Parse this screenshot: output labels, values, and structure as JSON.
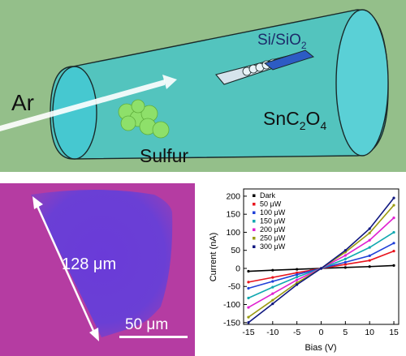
{
  "diagram": {
    "gas_label": "Ar",
    "substrate_label": "Si/SiO",
    "substrate_sub": "2",
    "precursor_main": "SnC",
    "precursor_sub1": "2",
    "precursor_mid": "O",
    "precursor_sub2": "4",
    "sulfur_label": "Sulfur"
  },
  "micrograph": {
    "size_label": "128 μm",
    "scalebar_label": "50 μm"
  },
  "chart_data": {
    "type": "line",
    "title": "",
    "xlabel": "Bias (V)",
    "ylabel": "Current (nA)",
    "xlim": [
      -16,
      16
    ],
    "ylim": [
      -155,
      220
    ],
    "xticks": [
      -15,
      -10,
      -5,
      0,
      5,
      10,
      15
    ],
    "yticks": [
      -150,
      -100,
      -50,
      0,
      50,
      100,
      150,
      200
    ],
    "legend_position": "top-left",
    "series": [
      {
        "name": "Dark",
        "color": "#000000",
        "x": [
          -15,
          -10,
          -5,
          0,
          5,
          10,
          15
        ],
        "y": [
          -8,
          -5,
          -2.5,
          0,
          2.5,
          5,
          8
        ]
      },
      {
        "name": "50 μW",
        "color": "#e8141e",
        "x": [
          -15,
          -10,
          -5,
          0,
          5,
          10,
          15
        ],
        "y": [
          -38,
          -25,
          -12,
          0,
          11,
          22,
          48
        ]
      },
      {
        "name": "100 μW",
        "color": "#2040d8",
        "x": [
          -15,
          -10,
          -5,
          0,
          5,
          10,
          15
        ],
        "y": [
          -55,
          -36,
          -17,
          0,
          17,
          35,
          70
        ]
      },
      {
        "name": "150 μW",
        "color": "#10a8b0",
        "x": [
          -15,
          -10,
          -5,
          0,
          5,
          10,
          15
        ],
        "y": [
          -82,
          -52,
          -24,
          0,
          26,
          58,
          100
        ]
      },
      {
        "name": "200 μW",
        "color": "#e020d0",
        "x": [
          -15,
          -10,
          -5,
          0,
          5,
          10,
          15
        ],
        "y": [
          -108,
          -70,
          -32,
          0,
          36,
          78,
          140
        ]
      },
      {
        "name": "250 μW",
        "color": "#9a9a10",
        "x": [
          -15,
          -10,
          -5,
          0,
          5,
          10,
          15
        ],
        "y": [
          -135,
          -88,
          -40,
          0,
          45,
          98,
          175
        ]
      },
      {
        "name": "300 μW",
        "color": "#101880",
        "x": [
          -15,
          -10,
          -5,
          0,
          5,
          10,
          15
        ],
        "y": [
          -150,
          -98,
          -45,
          0,
          50,
          110,
          195
        ]
      }
    ]
  }
}
